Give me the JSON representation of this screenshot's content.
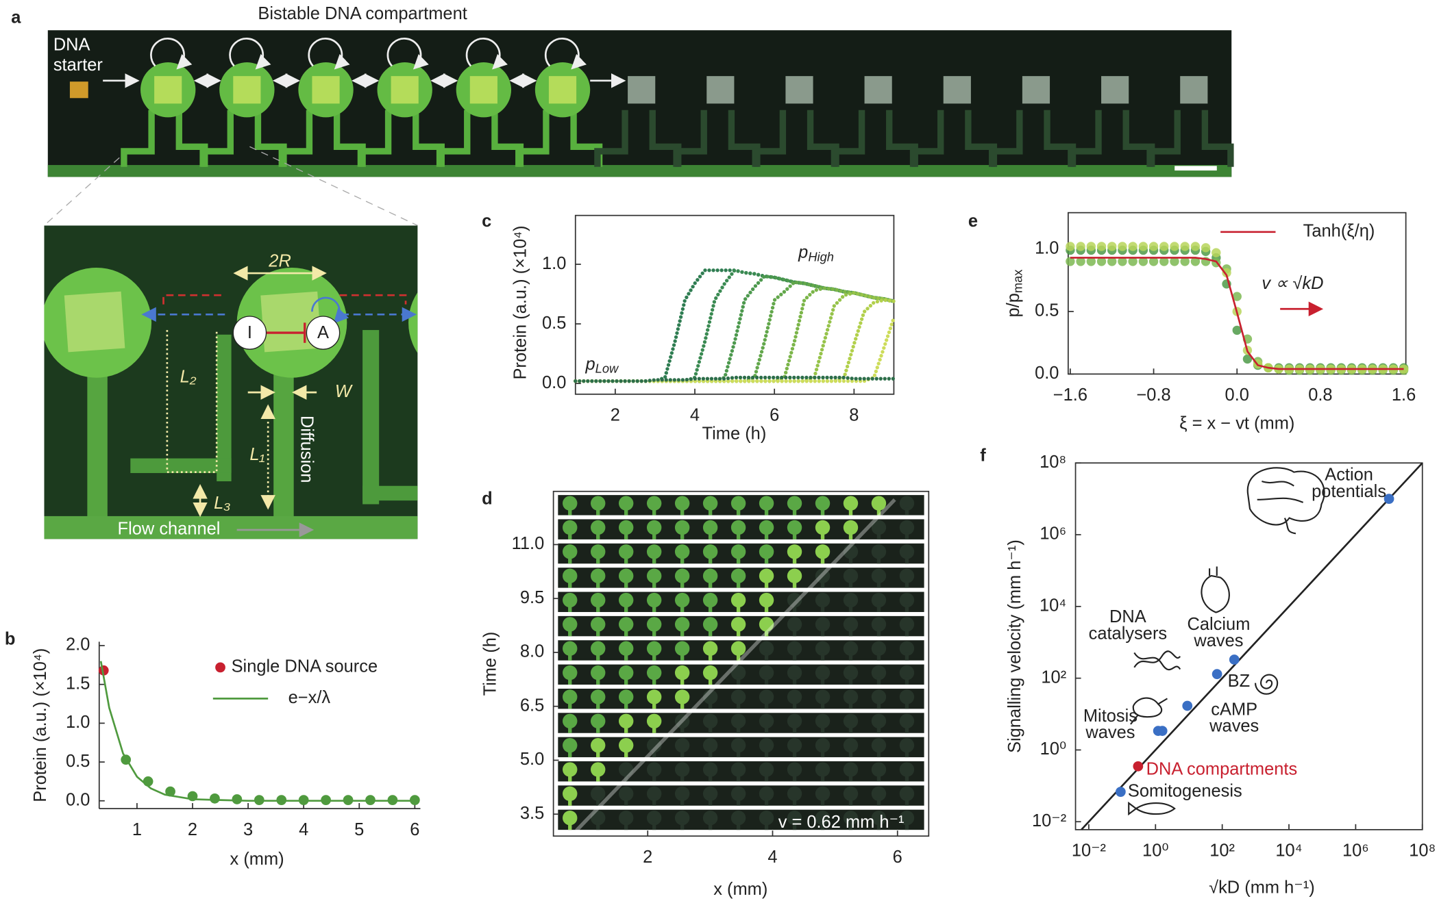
{
  "panel_labels": [
    "a",
    "b",
    "c",
    "d",
    "e",
    "f"
  ],
  "panel_a": {
    "title": "Bistable DNA compartment",
    "starter": [
      "DNA",
      "starter"
    ],
    "inset": {
      "two_r": "2R",
      "inhibitor": "I",
      "activator": "A",
      "l2": "L₂",
      "w": "W",
      "diffusion": "Diffusion",
      "l1": "L₁",
      "l3": "L₃",
      "flow": "Flow channel"
    }
  },
  "chart_data": [
    {
      "type": "line",
      "xlabel": "x (mm)",
      "ylabel": "Protein (a.u.) (×10⁴)",
      "xlim": [
        0.32,
        6.1
      ],
      "ylim": [
        -0.1,
        2.05
      ],
      "xticks": [
        1,
        2,
        3,
        4,
        5,
        6
      ],
      "yticks": [
        {
          "value": 0,
          "label": "0.0"
        },
        0.5,
        {
          "value": 1,
          "label": "1.0"
        },
        1.5,
        {
          "value": 2,
          "label": "2.0"
        }
      ],
      "legend": "upper right",
      "series": [
        {
          "name": "Single DNA source",
          "type": "scatter",
          "color": "#c8202f",
          "x": [
            0.4
          ],
          "values": [
            1.68
          ]
        },
        {
          "type": "scatter",
          "color": "#4f9a3e",
          "x": [
            0.8,
            1.2,
            1.6,
            2.0,
            2.4,
            2.8,
            3.2,
            3.6,
            4.0,
            4.4,
            4.8,
            5.2,
            5.6,
            6.0
          ],
          "values": [
            0.53,
            0.25,
            0.12,
            0.06,
            0.03,
            0.02,
            0.01,
            0.01,
            0.01,
            0.01,
            0.01,
            0.01,
            0.01,
            0.01
          ]
        },
        {
          "name": "e−x/λ",
          "type": "line",
          "color": "#4f9a3e",
          "x": [
            0.35,
            0.5,
            0.75,
            1,
            1.25,
            1.5,
            2,
            2.5,
            3,
            4,
            5,
            6
          ],
          "values": [
            1.8,
            1.2,
            0.61,
            0.31,
            0.16,
            0.08,
            0.02,
            0.01,
            0,
            0,
            0,
            0
          ]
        }
      ]
    },
    {
      "type": "line",
      "xlabel": "Time (h)",
      "ylabel": "Protein (a.u.) (×10⁴)",
      "xlim": [
        1,
        9
      ],
      "ylim": [
        -0.09,
        1.41
      ],
      "xticks": [
        2,
        4,
        6,
        8
      ],
      "yticks": [
        {
          "value": 0,
          "label": "0.0"
        },
        0.5,
        {
          "value": 1,
          "label": "1.0"
        }
      ],
      "annotations": [
        [
          "p",
          "High"
        ],
        [
          "p",
          "Low"
        ]
      ],
      "x": [
        1,
        1.25,
        1.5,
        1.75,
        2,
        2.25,
        2.5,
        2.75,
        3,
        3.25,
        3.5,
        3.75,
        4,
        4.25,
        4.5,
        4.75,
        5,
        5.25,
        5.5,
        5.75,
        6,
        6.25,
        6.5,
        6.75,
        7,
        7.25,
        7.5,
        7.75,
        8,
        8.25,
        8.5,
        8.75,
        9
      ],
      "series": [
        {
          "color": "#2f7d52",
          "values": [
            0.02,
            0.02,
            0.02,
            0.02,
            0.02,
            0.02,
            0.02,
            0.02,
            0.02,
            0.05,
            0.35,
            0.7,
            0.84,
            0.95,
            0.95,
            0.95,
            0.95,
            0.93,
            0.92,
            0.9,
            0.89,
            0.87,
            0.85,
            0.84,
            0.82,
            0.8,
            0.79,
            0.77,
            0.76,
            0.74,
            0.72,
            0.71,
            0.69
          ]
        },
        {
          "color": "#3a8a52",
          "values": [
            0.02,
            0.02,
            0.02,
            0.02,
            0.02,
            0.02,
            0.02,
            0.02,
            0.02,
            0.02,
            0.02,
            0.02,
            0.05,
            0.35,
            0.7,
            0.84,
            0.95,
            0.93,
            0.92,
            0.9,
            0.89,
            0.87,
            0.85,
            0.84,
            0.82,
            0.8,
            0.79,
            0.77,
            0.76,
            0.74,
            0.72,
            0.71,
            0.69
          ]
        },
        {
          "color": "#4d994e",
          "values": [
            0.02,
            0.02,
            0.02,
            0.02,
            0.02,
            0.02,
            0.02,
            0.02,
            0.02,
            0.02,
            0.02,
            0.02,
            0.02,
            0.02,
            0.02,
            0.05,
            0.35,
            0.7,
            0.81,
            0.9,
            0.89,
            0.87,
            0.85,
            0.84,
            0.82,
            0.8,
            0.79,
            0.77,
            0.76,
            0.74,
            0.72,
            0.71,
            0.69
          ]
        },
        {
          "color": "#62a74b",
          "values": [
            0.02,
            0.02,
            0.02,
            0.02,
            0.02,
            0.02,
            0.02,
            0.02,
            0.02,
            0.02,
            0.02,
            0.02,
            0.02,
            0.02,
            0.02,
            0.02,
            0.02,
            0.02,
            0.05,
            0.35,
            0.7,
            0.77,
            0.85,
            0.84,
            0.82,
            0.8,
            0.79,
            0.77,
            0.76,
            0.74,
            0.72,
            0.71,
            0.69
          ]
        },
        {
          "color": "#7bb549",
          "values": [
            0.02,
            0.02,
            0.02,
            0.02,
            0.02,
            0.02,
            0.02,
            0.02,
            0.02,
            0.02,
            0.02,
            0.02,
            0.02,
            0.02,
            0.02,
            0.02,
            0.02,
            0.02,
            0.02,
            0.02,
            0.02,
            0.05,
            0.35,
            0.7,
            0.78,
            0.8,
            0.79,
            0.77,
            0.76,
            0.74,
            0.72,
            0.71,
            0.69
          ]
        },
        {
          "color": "#96c34a",
          "values": [
            0.02,
            0.02,
            0.02,
            0.02,
            0.02,
            0.02,
            0.02,
            0.02,
            0.02,
            0.02,
            0.02,
            0.02,
            0.02,
            0.02,
            0.02,
            0.02,
            0.02,
            0.02,
            0.02,
            0.02,
            0.02,
            0.02,
            0.02,
            0.02,
            0.05,
            0.35,
            0.65,
            0.74,
            0.76,
            0.74,
            0.72,
            0.71,
            0.69
          ]
        },
        {
          "color": "#b2d04c",
          "values": [
            0.02,
            0.02,
            0.02,
            0.02,
            0.02,
            0.02,
            0.02,
            0.02,
            0.02,
            0.02,
            0.02,
            0.02,
            0.02,
            0.02,
            0.02,
            0.02,
            0.02,
            0.02,
            0.02,
            0.02,
            0.02,
            0.02,
            0.02,
            0.02,
            0.02,
            0.02,
            0.02,
            0.05,
            0.33,
            0.6,
            0.68,
            0.7,
            0.69
          ]
        },
        {
          "color": "#cddc5a",
          "values": [
            0.02,
            0.02,
            0.02,
            0.02,
            0.02,
            0.02,
            0.02,
            0.02,
            0.02,
            0.02,
            0.02,
            0.02,
            0.02,
            0.02,
            0.02,
            0.02,
            0.02,
            0.02,
            0.02,
            0.02,
            0.02,
            0.02,
            0.02,
            0.02,
            0.02,
            0.02,
            0.02,
            0.02,
            0.02,
            0.02,
            0.05,
            0.3,
            0.55
          ]
        },
        {
          "color": "#2d6e4a",
          "values": [
            0.02,
            0.02,
            0.02,
            0.02,
            0.02,
            0.02,
            0.02,
            0.02,
            0.03,
            0.03,
            0.03,
            0.03,
            0.04,
            0.04,
            0.04,
            0.04,
            0.05,
            0.05,
            0.05,
            0.05,
            0.05,
            0.05,
            0.05,
            0.05,
            0.05,
            0.05,
            0.05,
            0.05,
            0.04,
            0.04,
            0.04,
            0.04,
            0.04
          ]
        }
      ]
    },
    {
      "type": "image",
      "xlabel": "x (mm)",
      "ylabel": "Time (h)",
      "xlim": [
        0.49,
        6.5
      ],
      "ylim": [
        2.89,
        12.48
      ],
      "xticks": [
        2,
        4,
        6
      ],
      "yticks": [
        3.5,
        {
          "value": 5,
          "label": "5.0"
        },
        6.5,
        {
          "value": 8,
          "label": "8.0"
        },
        9.5,
        {
          "value": 11,
          "label": "11.0"
        }
      ],
      "annotation": "v = 0.62 mm h⁻¹"
    },
    {
      "type": "line",
      "xlabel": "ξ = x − vt (mm)",
      "ylabel": [
        "p/p",
        "max"
      ],
      "xlim": [
        -1.62,
        1.62
      ],
      "ylim": [
        0,
        1.29
      ],
      "xticks": [
        {
          "value": -1.6,
          "label": "−1.6"
        },
        {
          "value": -0.8,
          "label": "−0.8"
        },
        {
          "value": 0,
          "label": "0.0"
        },
        0.8,
        1.6
      ],
      "yticks": [
        {
          "value": 0,
          "label": "0.0"
        },
        0.5,
        {
          "value": 1,
          "label": "1.0"
        }
      ],
      "legend": "upper right",
      "annotation": "v ∝ √kD",
      "x": [
        -1.6,
        -1.5,
        -1.4,
        -1.3,
        -1.2,
        -1.1,
        -1.0,
        -0.9,
        -0.8,
        -0.7,
        -0.6,
        -0.5,
        -0.4,
        -0.3,
        -0.2,
        -0.1,
        0,
        0.1,
        0.2,
        0.3,
        0.4,
        0.5,
        0.6,
        0.7,
        0.8,
        0.9,
        1.0,
        1.1,
        1.2,
        1.3,
        1.4,
        1.5,
        1.6
      ],
      "series": [
        {
          "type": "scatter",
          "color": "#4e9a48",
          "values": [
            0.99,
            0.99,
            0.99,
            0.99,
            0.99,
            0.99,
            0.99,
            0.99,
            0.99,
            0.99,
            0.99,
            0.99,
            0.99,
            0.98,
            0.93,
            0.72,
            0.35,
            0.12,
            0.07,
            0.05,
            0.05,
            0.05,
            0.05,
            0.05,
            0.05,
            0.05,
            0.05,
            0.05,
            0.05,
            0.05,
            0.05,
            0.05,
            0.05
          ]
        },
        {
          "type": "scatter",
          "color": "#7db852",
          "values": [
            0.9,
            0.9,
            0.9,
            0.9,
            0.9,
            0.9,
            0.9,
            0.9,
            0.9,
            0.9,
            0.9,
            0.9,
            0.9,
            0.9,
            0.89,
            0.84,
            0.62,
            0.28,
            0.1,
            0.05,
            0.04,
            0.03,
            0.03,
            0.03,
            0.03,
            0.03,
            0.03,
            0.03,
            0.03,
            0.03,
            0.03,
            0.03,
            0.03
          ]
        },
        {
          "type": "scatter",
          "color": "#b7d55a",
          "values": [
            1.02,
            1.02,
            1.02,
            1.02,
            1.02,
            1.02,
            1.02,
            1.02,
            1.02,
            1.02,
            1.02,
            1.02,
            1.02,
            1.01,
            0.97,
            0.81,
            0.5,
            0.19,
            0.08,
            0.05,
            0.04,
            0.04,
            0.04,
            0.04,
            0.04,
            0.04,
            0.04,
            0.04,
            0.04,
            0.04,
            0.04,
            0.04,
            0.04
          ]
        },
        {
          "name": "Tanh(ξ/η)",
          "type": "line",
          "color": "#c8202f",
          "values": [
            0.93,
            0.93,
            0.93,
            0.93,
            0.93,
            0.93,
            0.93,
            0.93,
            0.93,
            0.93,
            0.93,
            0.93,
            0.93,
            0.92,
            0.9,
            0.79,
            0.49,
            0.18,
            0.07,
            0.05,
            0.04,
            0.04,
            0.04,
            0.04,
            0.04,
            0.04,
            0.04,
            0.04,
            0.04,
            0.04,
            0.04,
            0.04,
            0.04
          ]
        }
      ]
    },
    {
      "type": "scatter",
      "log_x": true,
      "log_y": true,
      "xlabel": "√kD (mm h⁻¹)",
      "ylabel": "Signalling velocity (mm h⁻¹)",
      "xlim": [
        0.004,
        100000000
      ],
      "ylim": [
        0.006,
        100000000
      ],
      "xticks": [
        {
          "value": 0.01,
          "label": "10⁻²"
        },
        {
          "value": 1,
          "label": "10⁰"
        },
        {
          "value": 100,
          "label": "10²"
        },
        {
          "value": 10000,
          "label": "10⁴"
        },
        {
          "value": 1000000,
          "label": "10⁶"
        },
        {
          "value": 100000000,
          "label": "10⁸"
        }
      ],
      "yticks": [
        {
          "value": 0.01,
          "label": "10⁻²"
        },
        {
          "value": 1,
          "label": "10⁰"
        },
        {
          "value": 100,
          "label": "10²"
        },
        {
          "value": 10000,
          "label": "10⁴"
        },
        {
          "value": 1000000,
          "label": "10⁶"
        },
        {
          "value": 100000000,
          "label": "10⁸"
        }
      ],
      "series": [
        {
          "type": "line",
          "color": "#222222",
          "x": [
            0.006,
            100000000
          ],
          "values": [
            0.006,
            100000000
          ]
        },
        {
          "type": "scatter",
          "color": "#3a6fc4",
          "x": [
            10000000,
            230,
            70,
            9,
            1.2,
            1.6,
            0.09
          ],
          "values": [
            10000000,
            330,
            130,
            17,
            3.4,
            3.4,
            0.068
          ]
        },
        {
          "type": "scatter",
          "color": "#c8202f",
          "x": [
            0.3
          ],
          "values": [
            0.35
          ]
        }
      ],
      "annotations": [
        {
          "lines": [
            "Action",
            "potentials"
          ]
        },
        {
          "lines": [
            "Calcium",
            "waves"
          ]
        },
        {
          "lines": [
            "BZ"
          ]
        },
        {
          "lines": [
            "cAMP",
            "waves"
          ]
        },
        {
          "lines": [
            "Mitosis",
            "waves"
          ]
        },
        {
          "lines": [
            "DNA",
            "catalysers"
          ]
        },
        {
          "lines": [
            "DNA compartments"
          ],
          "color": "#c8202f"
        },
        {
          "lines": [
            "Somitogenesis"
          ]
        }
      ]
    }
  ]
}
